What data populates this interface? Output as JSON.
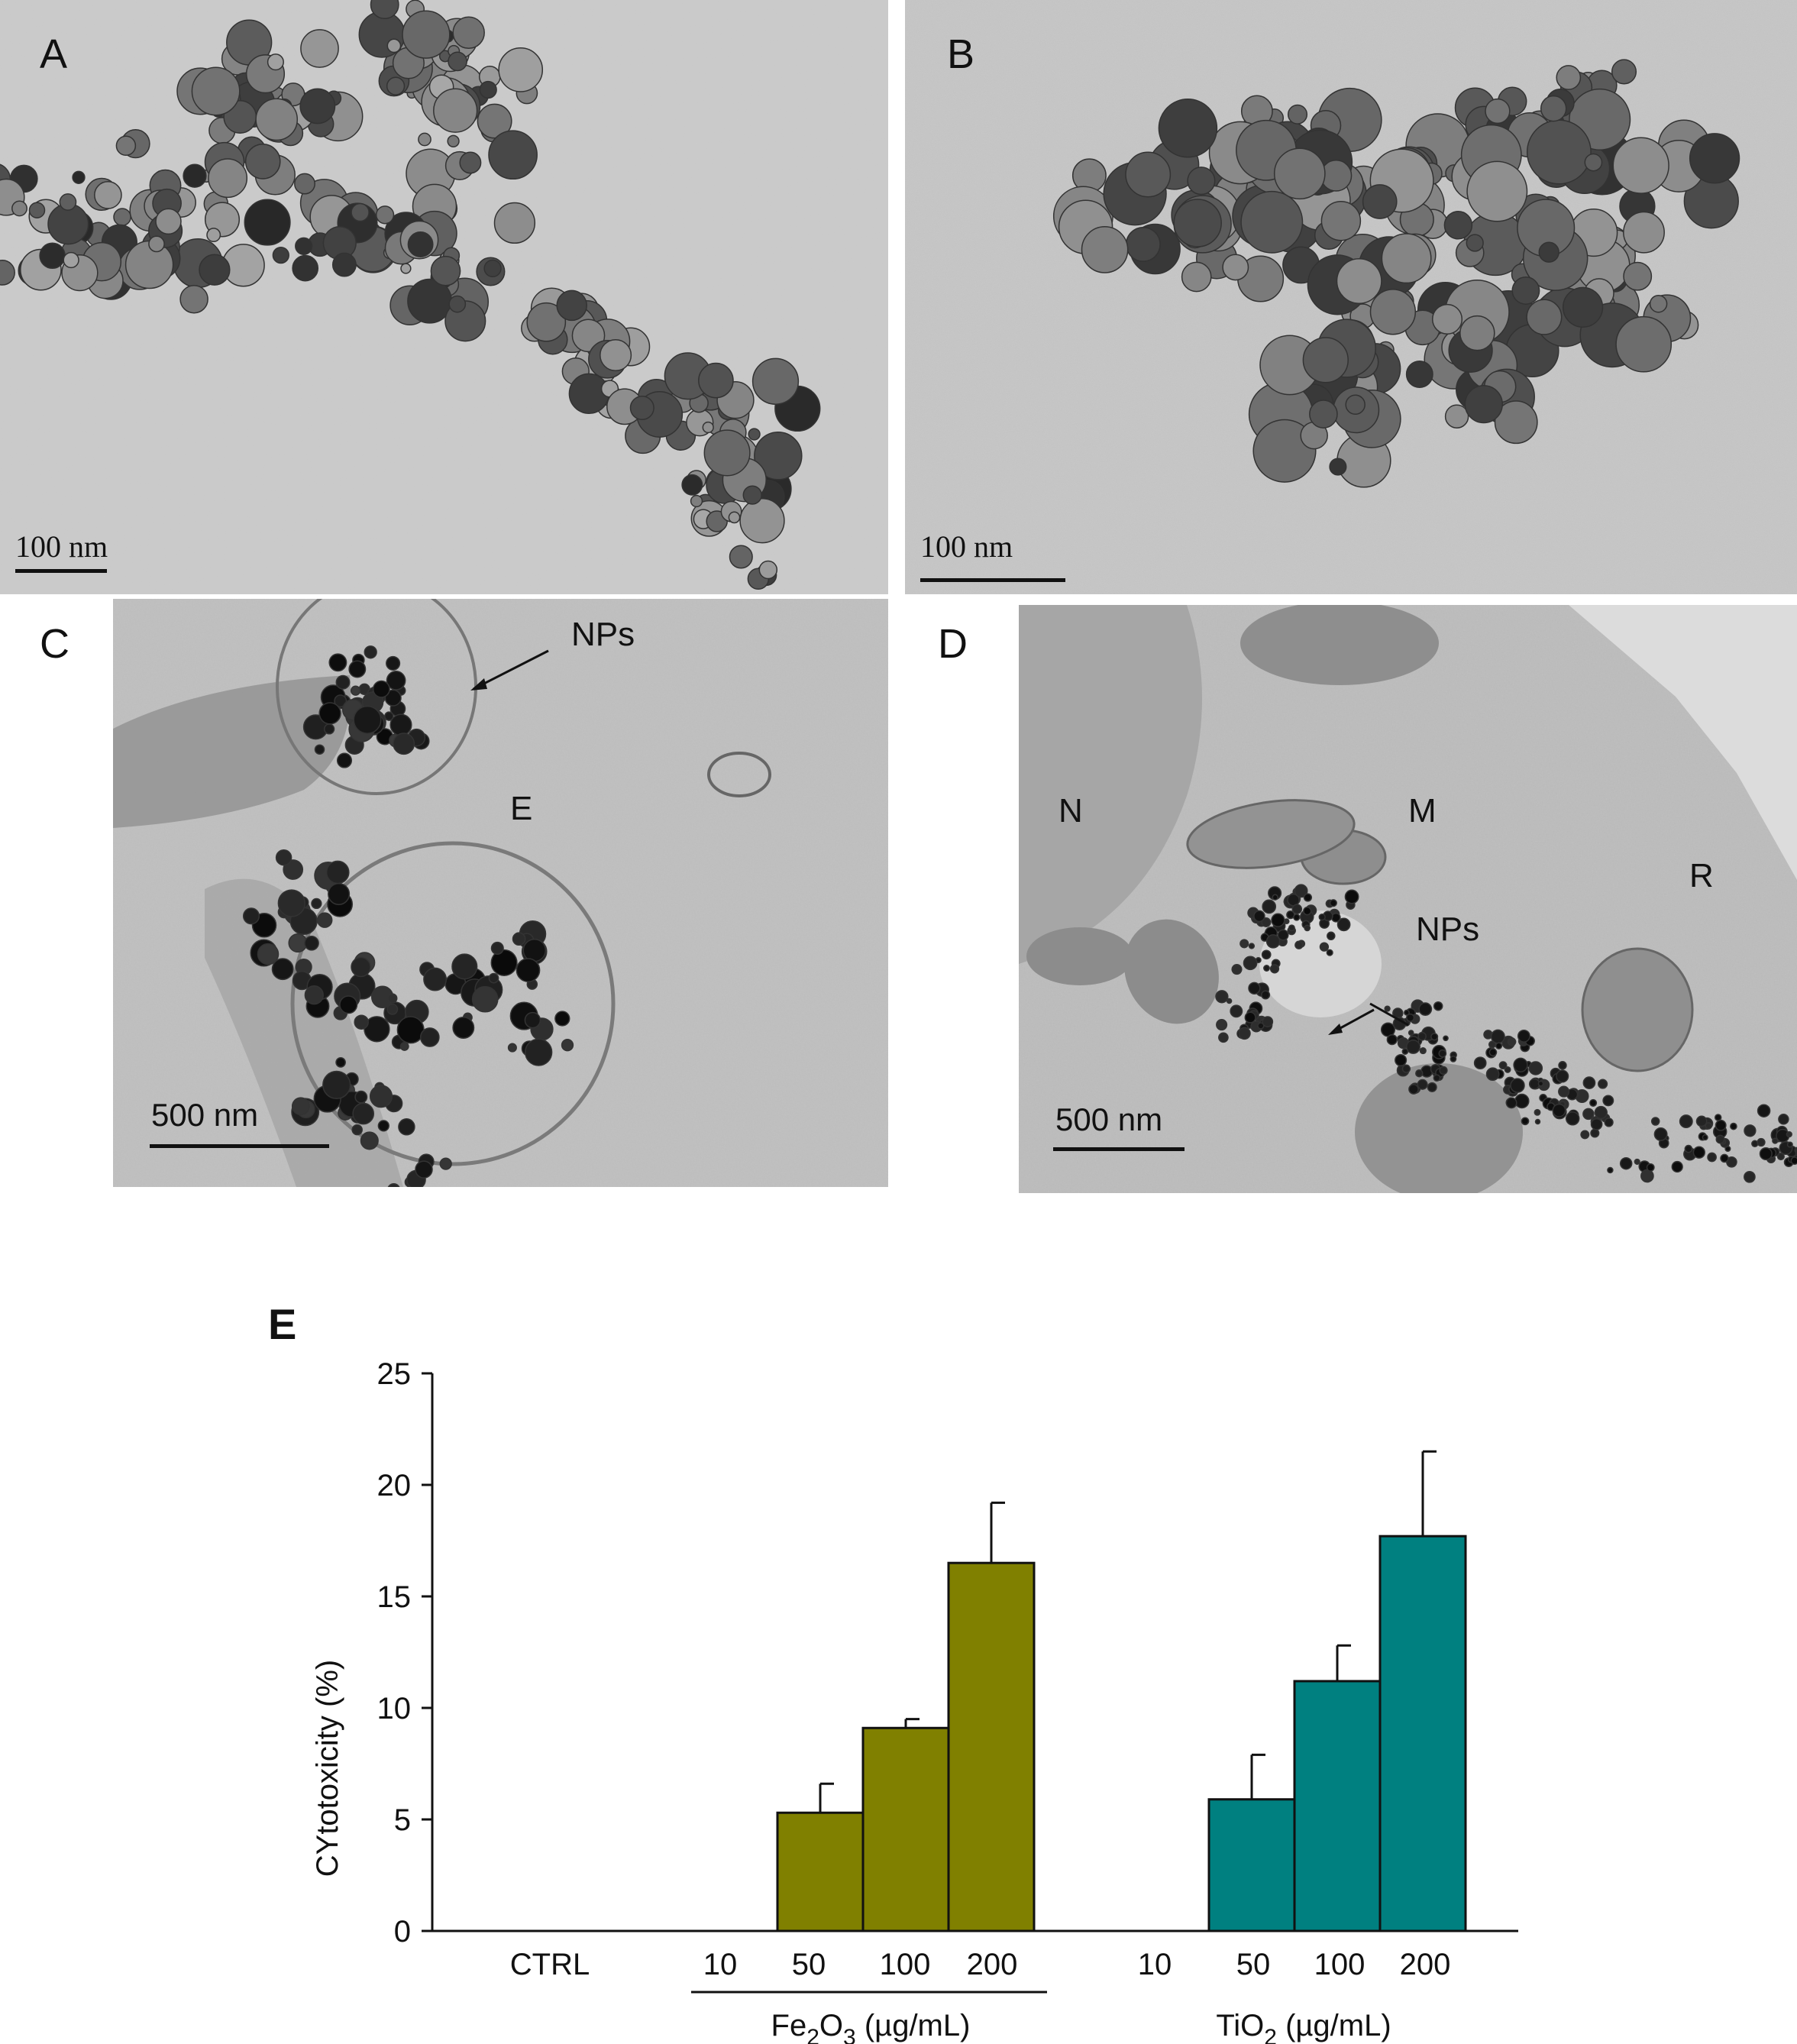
{
  "panels": {
    "A": {
      "label": "A",
      "scale": "100 nm"
    },
    "B": {
      "label": "B",
      "scale": "100 nm"
    },
    "C": {
      "label": "C",
      "scale": "500 nm",
      "annotations": {
        "nps": "NPs",
        "e": "E"
      }
    },
    "D": {
      "label": "D",
      "scale": "500 nm",
      "annotations": {
        "n": "N",
        "m": "M",
        "r": "R",
        "nps": "NPs"
      }
    }
  },
  "colors": {
    "fe2o3": "#808000",
    "tio2": "#008080"
  },
  "chart_data": {
    "type": "bar",
    "panel_label": "E",
    "ylabel": "CYtotoxicity (%)",
    "ylim": [
      0,
      25
    ],
    "yticks": [
      0,
      5,
      10,
      15,
      20,
      25
    ],
    "ytick_labels": [
      "0",
      "5",
      "10",
      "15",
      "20",
      "25"
    ],
    "categories": [
      "CTRL",
      "10",
      "50",
      "100",
      "200",
      "10",
      "50",
      "100",
      "200"
    ],
    "groups": [
      {
        "name_main": "Fe",
        "name_sub1": "2",
        "name_mid": "O",
        "name_sub2": "3",
        "name_unit": " (µg/mL)",
        "color": "#808000"
      },
      {
        "name_main": "TiO",
        "name_sub1": "2",
        "name_mid": "",
        "name_sub2": "",
        "name_unit": " (µg/mL)",
        "color": "#008080"
      }
    ],
    "bars": [
      {
        "category": "CTRL",
        "value": 0,
        "error": 0,
        "group": null
      },
      {
        "category": "10",
        "value": 0,
        "error": 0,
        "group": 0
      },
      {
        "category": "50",
        "value": 5.3,
        "error": 1.3,
        "group": 0
      },
      {
        "category": "100",
        "value": 9.1,
        "error": 0.4,
        "group": 0
      },
      {
        "category": "200",
        "value": 16.5,
        "error": 2.7,
        "group": 0
      },
      {
        "category": "10",
        "value": 0,
        "error": 0,
        "group": 1
      },
      {
        "category": "50",
        "value": 5.9,
        "error": 2.0,
        "group": 1
      },
      {
        "category": "100",
        "value": 11.2,
        "error": 1.6,
        "group": 1
      },
      {
        "category": "200",
        "value": 17.7,
        "error": 3.8,
        "group": 1
      }
    ]
  }
}
